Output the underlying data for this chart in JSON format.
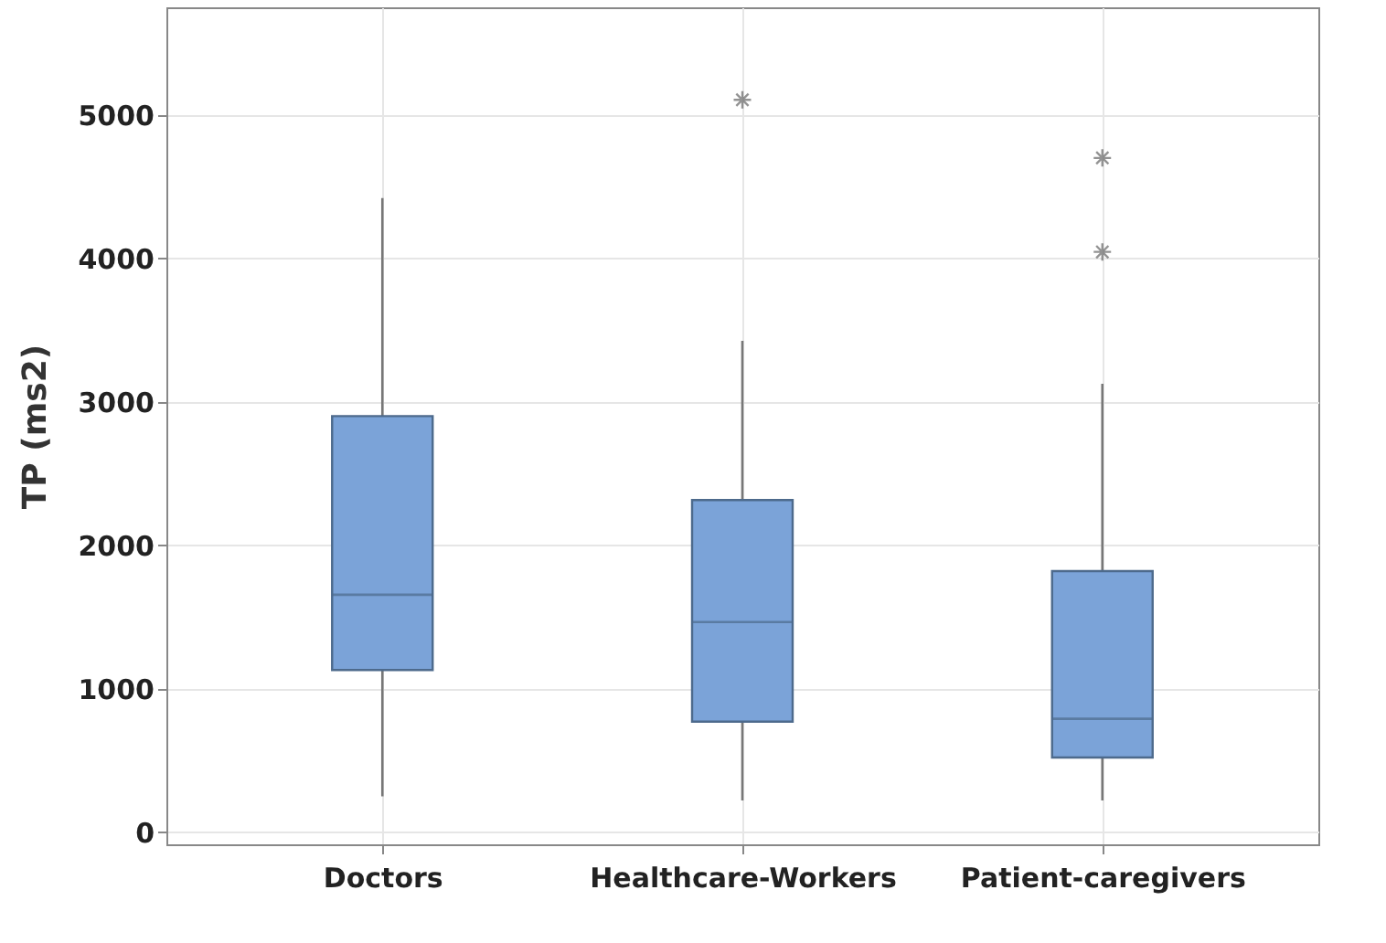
{
  "chart_data": {
    "type": "box",
    "ylabel": "TP (ms2)",
    "categories": [
      "Doctors",
      "Healthcare-Workers",
      "Patient-caregivers"
    ],
    "boxes": [
      {
        "low": 250,
        "q1": 1130,
        "median": 1655,
        "q3": 2900,
        "high": 4420
      },
      {
        "low": 220,
        "q1": 770,
        "median": 1465,
        "q3": 2315,
        "high": 3425,
        "outliers": [
          5105
        ]
      },
      {
        "low": 220,
        "q1": 520,
        "median": 790,
        "q3": 1820,
        "high": 3125,
        "outliers": [
          4700,
          4045
        ]
      }
    ],
    "color": "#7ba3d8",
    "ylim": [
      -85,
      5750
    ],
    "yticks": [
      0,
      1000,
      2000,
      3000,
      4000,
      5000
    ],
    "grid": true
  }
}
